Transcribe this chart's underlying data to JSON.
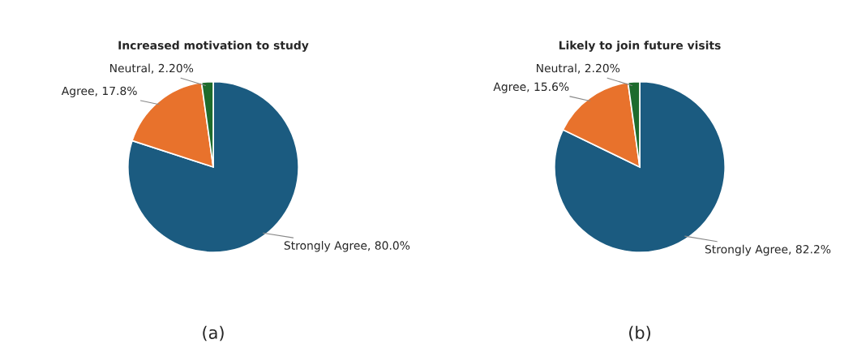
{
  "chart_data": [
    {
      "type": "pie",
      "title": "Increased motivation to study",
      "categories": [
        "Strongly Agree",
        "Agree",
        "Neutral"
      ],
      "values": [
        80.0,
        17.8,
        2.2
      ],
      "colors": [
        "#1b5b80",
        "#e8722c",
        "#1d6b2c"
      ],
      "value_labels": [
        "80.0%",
        "17.8%",
        "2.20%"
      ],
      "annotations": [
        "(a)"
      ]
    },
    {
      "type": "pie",
      "title": "Likely to join future visits",
      "categories": [
        "Strongly Agree",
        "Agree",
        "Neutral"
      ],
      "values": [
        82.2,
        15.6,
        2.2
      ],
      "colors": [
        "#1b5b80",
        "#e8722c",
        "#1d6b2c"
      ],
      "value_labels": [
        "82.2%",
        "15.6%",
        "2.20%"
      ],
      "annotations": [
        "(b)"
      ]
    }
  ]
}
